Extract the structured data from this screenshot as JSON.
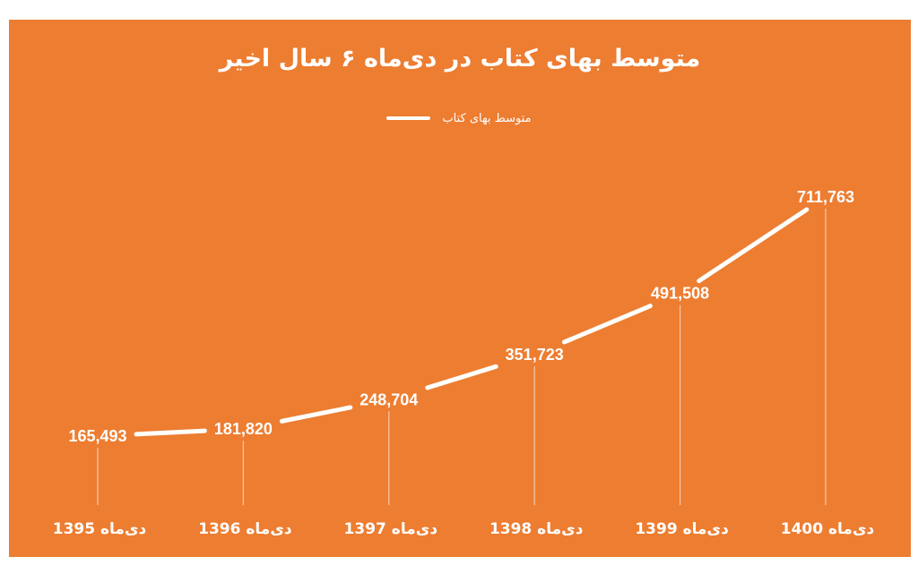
{
  "colors": {
    "background": "#ED7D31",
    "line": "#ffffff",
    "drop_line": "#F6C39F"
  },
  "chart_data": {
    "type": "line",
    "title": "متوسط بهای کتاب در دی‌ماه ۶ سال اخیر",
    "legend": {
      "position": "top",
      "entries": [
        "متوسط بهای کتاب"
      ]
    },
    "categories": [
      "دی‌ماه 1395",
      "دی‌ماه 1396",
      "دی‌ماه 1397",
      "دی‌ماه 1398",
      "دی‌ماه 1399",
      "دی‌ماه 1400"
    ],
    "series": [
      {
        "name": "متوسط بهای کتاب",
        "values": [
          165493,
          181820,
          248704,
          351723,
          491508,
          711763
        ],
        "labels": [
          "165,493",
          "181,820",
          "248,704",
          "351,723",
          "491,508",
          "711,763"
        ]
      }
    ],
    "grid": false,
    "drop_lines": true
  }
}
